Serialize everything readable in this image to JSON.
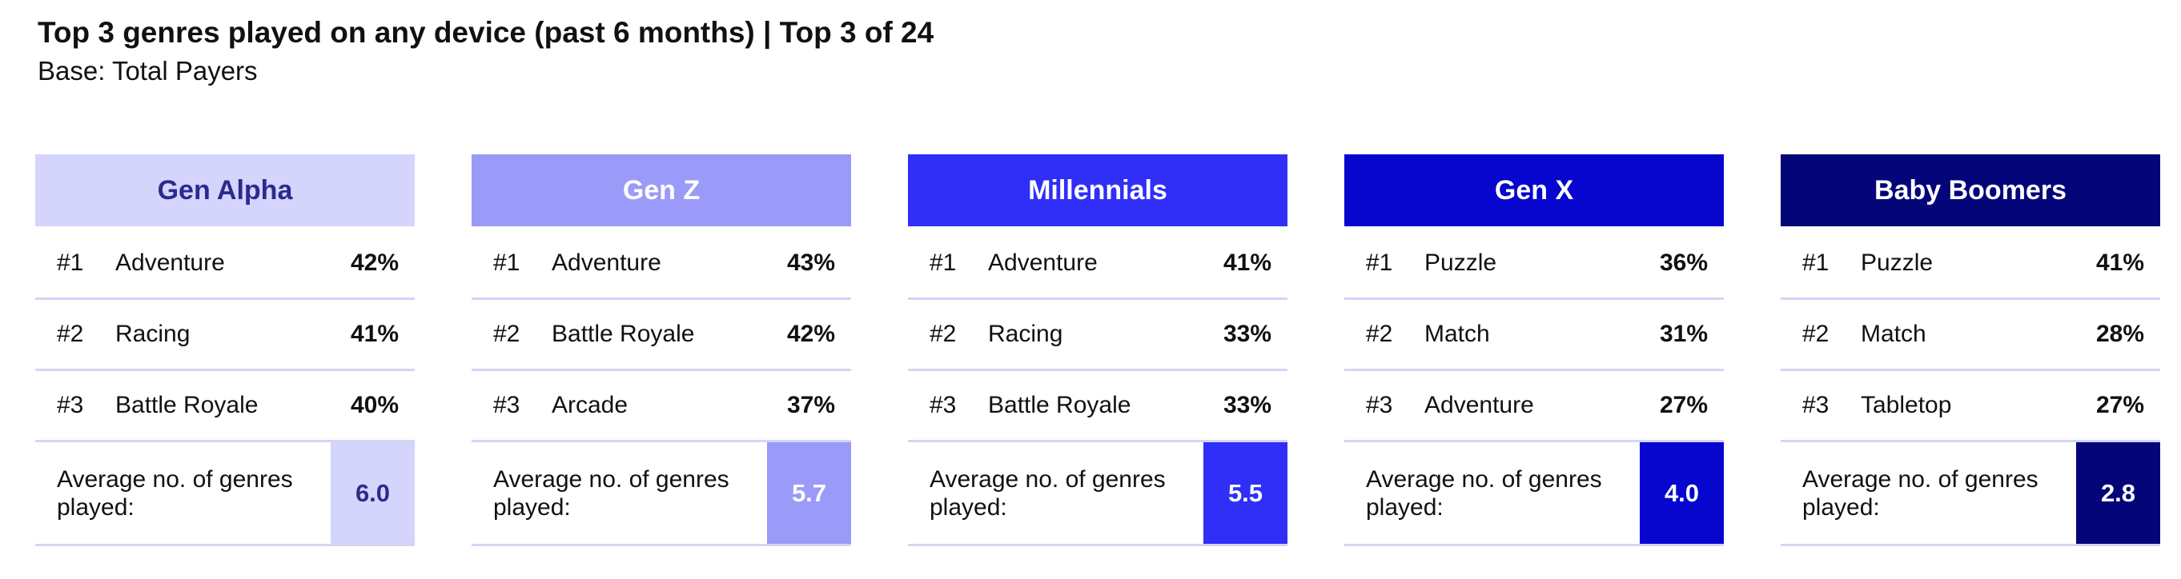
{
  "title": "Top 3 genres played on any device (past 6 months) | Top 3 of 24",
  "subtitle": "Base: Total Payers",
  "avg_label": "Average no. of genres played:",
  "colors": {
    "gen_alpha_bg": "#d4d4fc",
    "gen_alpha_text": "#2b2b8c",
    "gen_z_bg": "#9a9af9",
    "millennials_bg": "#2f2ff8",
    "gen_x_bg": "#0606cf",
    "boomers_bg": "#05057a",
    "divider": "#d4d4f5"
  },
  "chart_data": {
    "type": "table",
    "title": "Top 3 genres played on any device (past 6 months) | Top 3 of 24",
    "subtitle": "Base: Total Payers",
    "groups": [
      {
        "name": "Gen Alpha",
        "genres": [
          {
            "rank": "#1",
            "name": "Adventure",
            "pct": "42%"
          },
          {
            "rank": "#2",
            "name": "Racing",
            "pct": "41%"
          },
          {
            "rank": "#3",
            "name": "Battle Royale",
            "pct": "40%"
          }
        ],
        "avg_genres": "6.0"
      },
      {
        "name": "Gen Z",
        "genres": [
          {
            "rank": "#1",
            "name": "Adventure",
            "pct": "43%"
          },
          {
            "rank": "#2",
            "name": "Battle Royale",
            "pct": "42%"
          },
          {
            "rank": "#3",
            "name": "Arcade",
            "pct": "37%"
          }
        ],
        "avg_genres": "5.7"
      },
      {
        "name": "Millennials",
        "genres": [
          {
            "rank": "#1",
            "name": "Adventure",
            "pct": "41%"
          },
          {
            "rank": "#2",
            "name": "Racing",
            "pct": "33%"
          },
          {
            "rank": "#3",
            "name": "Battle Royale",
            "pct": "33%"
          }
        ],
        "avg_genres": "5.5"
      },
      {
        "name": "Gen X",
        "genres": [
          {
            "rank": "#1",
            "name": "Puzzle",
            "pct": "36%"
          },
          {
            "rank": "#2",
            "name": "Match",
            "pct": "31%"
          },
          {
            "rank": "#3",
            "name": "Adventure",
            "pct": "27%"
          }
        ],
        "avg_genres": "4.0"
      },
      {
        "name": "Baby Boomers",
        "genres": [
          {
            "rank": "#1",
            "name": "Puzzle",
            "pct": "41%"
          },
          {
            "rank": "#2",
            "name": "Match",
            "pct": "28%"
          },
          {
            "rank": "#3",
            "name": "Tabletop",
            "pct": "27%"
          }
        ],
        "avg_genres": "2.8"
      }
    ]
  }
}
